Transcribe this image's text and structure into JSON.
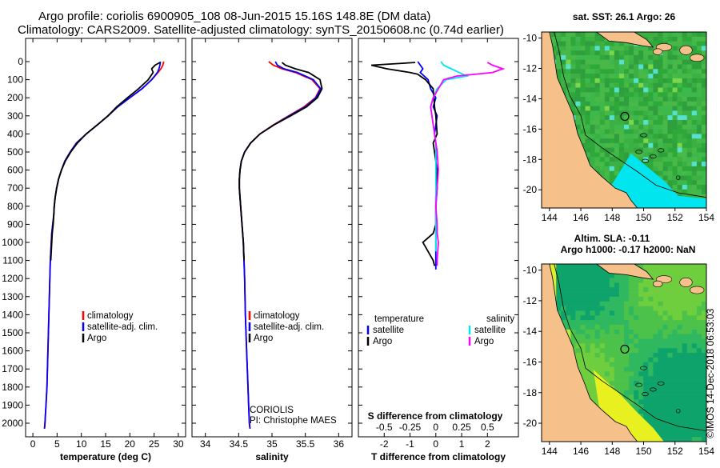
{
  "title_line1": "Argo profile: coriolis 6900905_108 08-Jun-2015 15.16S 148.8E (DM data)",
  "title_line2": "Climatology: CARS2009. Satellite-adjusted climatology: synTS_20150608.nc (0.74d earlier)",
  "credit": "©IMOS 14-Dec-2018 06:53:03",
  "institution": "CORIOLIS",
  "pi": "PI: Christophe MAES",
  "colors": {
    "climatology": "#ff0000",
    "satellite": "#0000ff",
    "argo": "#000000",
    "sal_satellite": "#00e5ee",
    "sal_argo": "#ff00ff",
    "land": "#f5c08a"
  },
  "chart_data": [
    {
      "type": "line",
      "name": "temperature profile",
      "xlabel": "temperature (deg C)",
      "xlim": [
        -1.5,
        31.5
      ],
      "xticks": [
        0,
        5,
        10,
        15,
        20,
        25,
        30
      ],
      "ylim": [
        0,
        2080
      ],
      "yticks": [
        0,
        100,
        200,
        300,
        400,
        500,
        600,
        700,
        800,
        900,
        1000,
        1100,
        1200,
        1300,
        1400,
        1500,
        1600,
        1700,
        1800,
        1900,
        2000
      ],
      "legend": [
        "climatology",
        "satellite-adj. clim.",
        "Argo"
      ],
      "series": [
        {
          "name": "climatology",
          "x": [
            27,
            26.8,
            26.4,
            25.8,
            24.5,
            22.5,
            20,
            17.5,
            15.5,
            13.3,
            11,
            9,
            7.7,
            6.6,
            5.9,
            5.3,
            4.9,
            4.6,
            4.4,
            4.3,
            4.1,
            3.9,
            3.8,
            3.7,
            3.6,
            3.5,
            3.4,
            3.3,
            3.2,
            3.1,
            3.0,
            2.9,
            2.8,
            2.7,
            2.6,
            2.5,
            2.4
          ],
          "y": [
            0,
            20,
            40,
            60,
            100,
            150,
            200,
            250,
            300,
            350,
            400,
            450,
            500,
            550,
            600,
            650,
            700,
            750,
            800,
            850,
            900,
            950,
            1000,
            1050,
            1100,
            1200,
            1300,
            1400,
            1500,
            1600,
            1700,
            1800,
            1850,
            1900,
            1950,
            2000,
            2030
          ]
        },
        {
          "name": "satellite-adj. clim.",
          "x": [
            26.3,
            26.2,
            26,
            25.7,
            24.5,
            22.5,
            20,
            17.5,
            15.5,
            13.3,
            11,
            9,
            7.7,
            6.6,
            5.9,
            5.3,
            4.9,
            4.6,
            4.4,
            4.3,
            4.1,
            3.9,
            3.8,
            3.7,
            3.6,
            3.5,
            3.4,
            3.3,
            3.2,
            3.1,
            3.0,
            2.9,
            2.8,
            2.7,
            2.6,
            2.5,
            2.4
          ],
          "y": [
            0,
            20,
            40,
            60,
            100,
            150,
            200,
            250,
            300,
            350,
            400,
            450,
            500,
            550,
            600,
            650,
            700,
            750,
            800,
            850,
            900,
            950,
            1000,
            1050,
            1100,
            1200,
            1300,
            1400,
            1500,
            1600,
            1700,
            1800,
            1850,
            1900,
            1950,
            2000,
            2030
          ]
        },
        {
          "name": "Argo",
          "x": [
            26.2,
            25.2,
            24.5,
            24.8,
            23.8,
            21.8,
            19.5,
            17.3,
            15.5,
            13.3,
            11,
            9.2,
            7.8,
            6.7,
            5.9,
            5.3,
            4.9,
            4.6,
            4.4,
            4.3,
            4.2,
            4.0,
            3.9,
            3.8,
            3.7
          ],
          "y": [
            5,
            20,
            40,
            60,
            100,
            150,
            200,
            250,
            300,
            350,
            400,
            450,
            500,
            550,
            600,
            650,
            700,
            750,
            800,
            850,
            900,
            950,
            1000,
            1050,
            1100
          ]
        }
      ]
    },
    {
      "type": "line",
      "name": "salinity profile",
      "xlabel": "salinity",
      "xlim": [
        33.8,
        36.2
      ],
      "xticks": [
        34,
        34.5,
        35,
        35.5,
        36
      ],
      "ylim": [
        0,
        2080
      ],
      "legend": [
        "climatology",
        "satellite-adj. clim.",
        "Argo"
      ],
      "series": [
        {
          "name": "climatology",
          "x": [
            34.95,
            35.02,
            35.15,
            35.35,
            35.6,
            35.72,
            35.65,
            35.48,
            35.25,
            35.02,
            34.82,
            34.68,
            34.59,
            34.54,
            34.52,
            34.51,
            34.51,
            34.52,
            34.53,
            34.55,
            34.57,
            34.58,
            34.59,
            34.6,
            34.62,
            34.64,
            34.65,
            34.66,
            34.67
          ],
          "y": [
            0,
            20,
            40,
            60,
            100,
            150,
            200,
            250,
            300,
            350,
            400,
            450,
            500,
            550,
            600,
            650,
            700,
            750,
            800,
            900,
            1000,
            1100,
            1200,
            1400,
            1600,
            1800,
            1900,
            2000,
            2030
          ]
        },
        {
          "name": "satellite-adj. clim.",
          "x": [
            35.05,
            35.08,
            35.18,
            35.38,
            35.62,
            35.73,
            35.66,
            35.5,
            35.26,
            35.03,
            34.82,
            34.68,
            34.59,
            34.54,
            34.52,
            34.51,
            34.51,
            34.52,
            34.53,
            34.55,
            34.57,
            34.58,
            34.59,
            34.6,
            34.62,
            34.64,
            34.65,
            34.66,
            34.67
          ],
          "y": [
            0,
            20,
            40,
            60,
            100,
            150,
            200,
            250,
            300,
            350,
            400,
            450,
            500,
            550,
            600,
            650,
            700,
            750,
            800,
            900,
            1000,
            1100,
            1200,
            1400,
            1600,
            1800,
            1900,
            2000,
            2030
          ]
        },
        {
          "name": "Argo",
          "x": [
            35.15,
            35.2,
            35.35,
            35.55,
            35.72,
            35.75,
            35.68,
            35.52,
            35.28,
            35.03,
            34.82,
            34.68,
            34.59,
            34.54,
            34.52,
            34.51,
            34.51,
            34.52,
            34.53,
            34.55,
            34.57,
            34.58
          ],
          "y": [
            5,
            20,
            40,
            60,
            100,
            150,
            200,
            250,
            300,
            350,
            400,
            450,
            500,
            550,
            600,
            650,
            700,
            750,
            800,
            900,
            1000,
            1100
          ]
        }
      ]
    },
    {
      "type": "line",
      "name": "difference from climatology",
      "xlabel": "T difference from climatology",
      "xlim": [
        -3,
        3.2
      ],
      "xticks": [
        -2,
        -1,
        0,
        1,
        2
      ],
      "top_xlabel": "S difference from climatology",
      "top_xticks": [
        "-0.5",
        "-0.25",
        "0",
        "0.25",
        "0.5"
      ],
      "top_xtick_pos": [
        -2,
        -1,
        0,
        1,
        2
      ],
      "ylim": [
        0,
        2080
      ],
      "legend_left_title": "temperature",
      "legend_right_title": "salinity",
      "legend_left": [
        "satellite",
        "Argo"
      ],
      "legend_right": [
        "satellite",
        "Argo"
      ],
      "series": [
        {
          "name": "T satellite",
          "x": [
            -0.7,
            -0.6,
            -0.5,
            -0.6,
            -0.3,
            -0.2,
            0,
            -0.1,
            0.05,
            0,
            -0.05,
            0,
            0.05,
            0,
            0.05,
            0.05,
            0,
            0,
            0,
            0,
            0
          ],
          "y": [
            0,
            20,
            40,
            60,
            100,
            150,
            200,
            250,
            300,
            350,
            400,
            450,
            500,
            550,
            600,
            700,
            800,
            900,
            1000,
            1100,
            1150
          ]
        },
        {
          "name": "T Argo",
          "x": [
            -0.8,
            -2.5,
            -1.9,
            -1,
            -0.7,
            -0.6,
            -0.4,
            -0.1,
            -0.05,
            0,
            0.05,
            -0.1,
            0,
            0.05,
            0.05,
            0,
            0,
            0,
            0,
            -0.1,
            -0.5,
            -0.3,
            -0.1,
            -0.05
          ],
          "y": [
            5,
            20,
            40,
            60,
            70,
            80,
            100,
            150,
            250,
            300,
            400,
            450,
            550,
            650,
            700,
            750,
            800,
            850,
            900,
            950,
            1000,
            1050,
            1100,
            1130
          ]
        },
        {
          "name": "S satellite",
          "x": [
            0.2,
            0.3,
            0.6,
            0.9,
            1.2,
            0.4,
            0.05,
            -0.1,
            -0.2,
            -0.15,
            -0.1,
            -0.05,
            0,
            0,
            0,
            0,
            0,
            0,
            0,
            0
          ],
          "y": [
            0,
            20,
            40,
            60,
            80,
            100,
            150,
            200,
            250,
            300,
            350,
            400,
            450,
            500,
            600,
            700,
            800,
            900,
            1000,
            1050
          ]
        },
        {
          "name": "S Argo",
          "x": [
            2,
            2.2,
            2.6,
            2.2,
            0.8,
            0.3,
            0.1,
            -0.1,
            -0.2,
            -0.15,
            -0.05,
            0,
            0.05,
            0.1,
            0.05,
            0,
            0.05,
            0.05,
            0.1,
            0.05,
            0.05
          ],
          "y": [
            5,
            20,
            40,
            60,
            80,
            100,
            150,
            200,
            250,
            300,
            400,
            450,
            500,
            600,
            700,
            800,
            900,
            950,
            1000,
            1100,
            1130
          ]
        }
      ]
    },
    {
      "type": "heatmap",
      "name": "SST map",
      "title": "sat. SST: 26.1 Argo: 26",
      "xticks": [
        144,
        146,
        148,
        150,
        152,
        154
      ],
      "xlim": [
        143.5,
        154
      ],
      "yticks": [
        -10,
        -12,
        -14,
        -16,
        -18,
        -20
      ],
      "ylim": [
        -21.2,
        -9.6
      ],
      "argo_position": [
        148.8,
        -15.16
      ]
    },
    {
      "type": "heatmap",
      "name": "altimetry map",
      "title": "Altim. SLA: -0.11",
      "subtitle": "Argo h1000: -0.17 h2000: NaN",
      "xticks": [
        144,
        146,
        148,
        150,
        152,
        154
      ],
      "xlim": [
        143.5,
        154
      ],
      "yticks": [
        -10,
        -12,
        -14,
        -16,
        -18,
        -20
      ],
      "ylim": [
        -21.2,
        -9.6
      ],
      "argo_position": [
        148.8,
        -15.16
      ]
    }
  ]
}
